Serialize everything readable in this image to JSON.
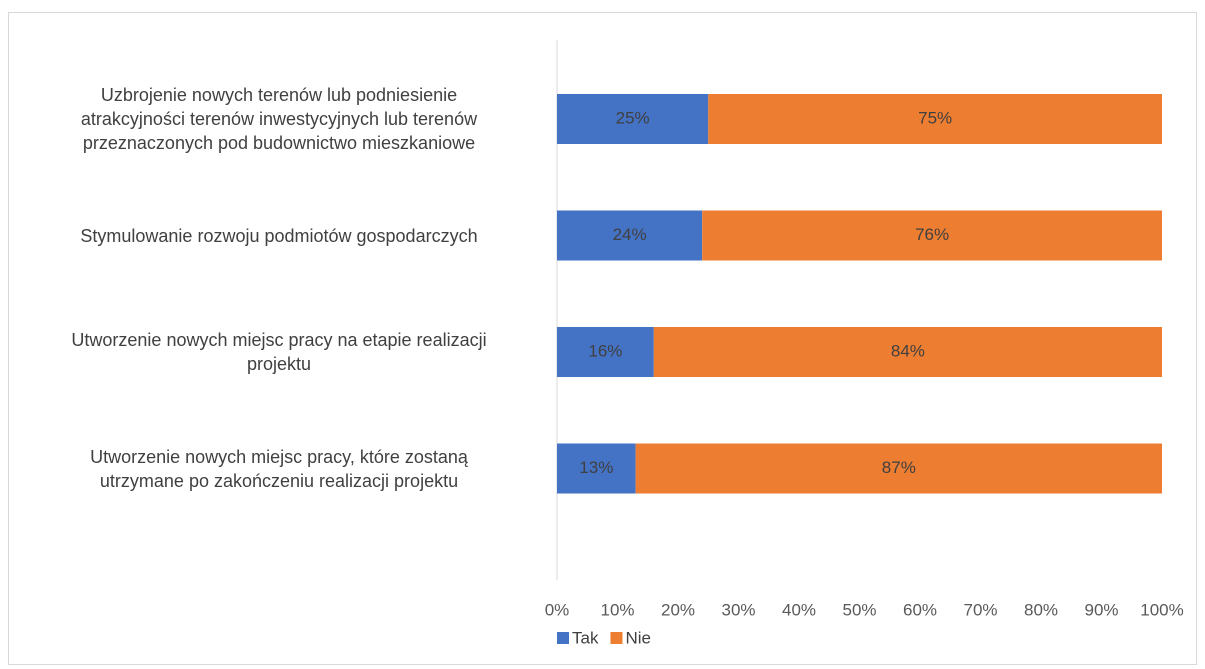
{
  "chart_data": {
    "type": "stacked_barh",
    "categories": [
      "Uzbrojenie nowych terenów lub podniesienie\natrakcyjności terenów inwestycyjnych lub terenów\nprzeznaczonych pod budownictwo mieszkaniowe",
      "Stymulowanie rozwoju podmiotów gospodarczych",
      "Utworzenie nowych miejsc pracy na etapie realizacji\nprojektu",
      "Utworzenie nowych miejsc pracy, które zostaną\nutrzymane po zakończeniu realizacji projektu"
    ],
    "series": [
      {
        "name": "Tak",
        "color": "#4472c4",
        "values": [
          25,
          24,
          16,
          13
        ],
        "value_labels": [
          "25%",
          "24%",
          "16%",
          "13%"
        ]
      },
      {
        "name": "Nie",
        "color": "#ed7d31",
        "values": [
          75,
          76,
          84,
          87
        ],
        "value_labels": [
          "75%",
          "76%",
          "84%",
          "87%"
        ]
      }
    ],
    "xlim": [
      0,
      100
    ],
    "xticks": [
      {
        "value": 0,
        "label": "0%"
      },
      {
        "value": 10,
        "label": "10%"
      },
      {
        "value": 20,
        "label": "20%"
      },
      {
        "value": 30,
        "label": "30%"
      },
      {
        "value": 40,
        "label": "40%"
      },
      {
        "value": 50,
        "label": "50%"
      },
      {
        "value": 60,
        "label": "60%"
      },
      {
        "value": 70,
        "label": "70%"
      },
      {
        "value": 80,
        "label": "80%"
      },
      {
        "value": 90,
        "label": "90%"
      },
      {
        "value": 100,
        "label": "100%"
      }
    ],
    "legend": "bottom"
  }
}
